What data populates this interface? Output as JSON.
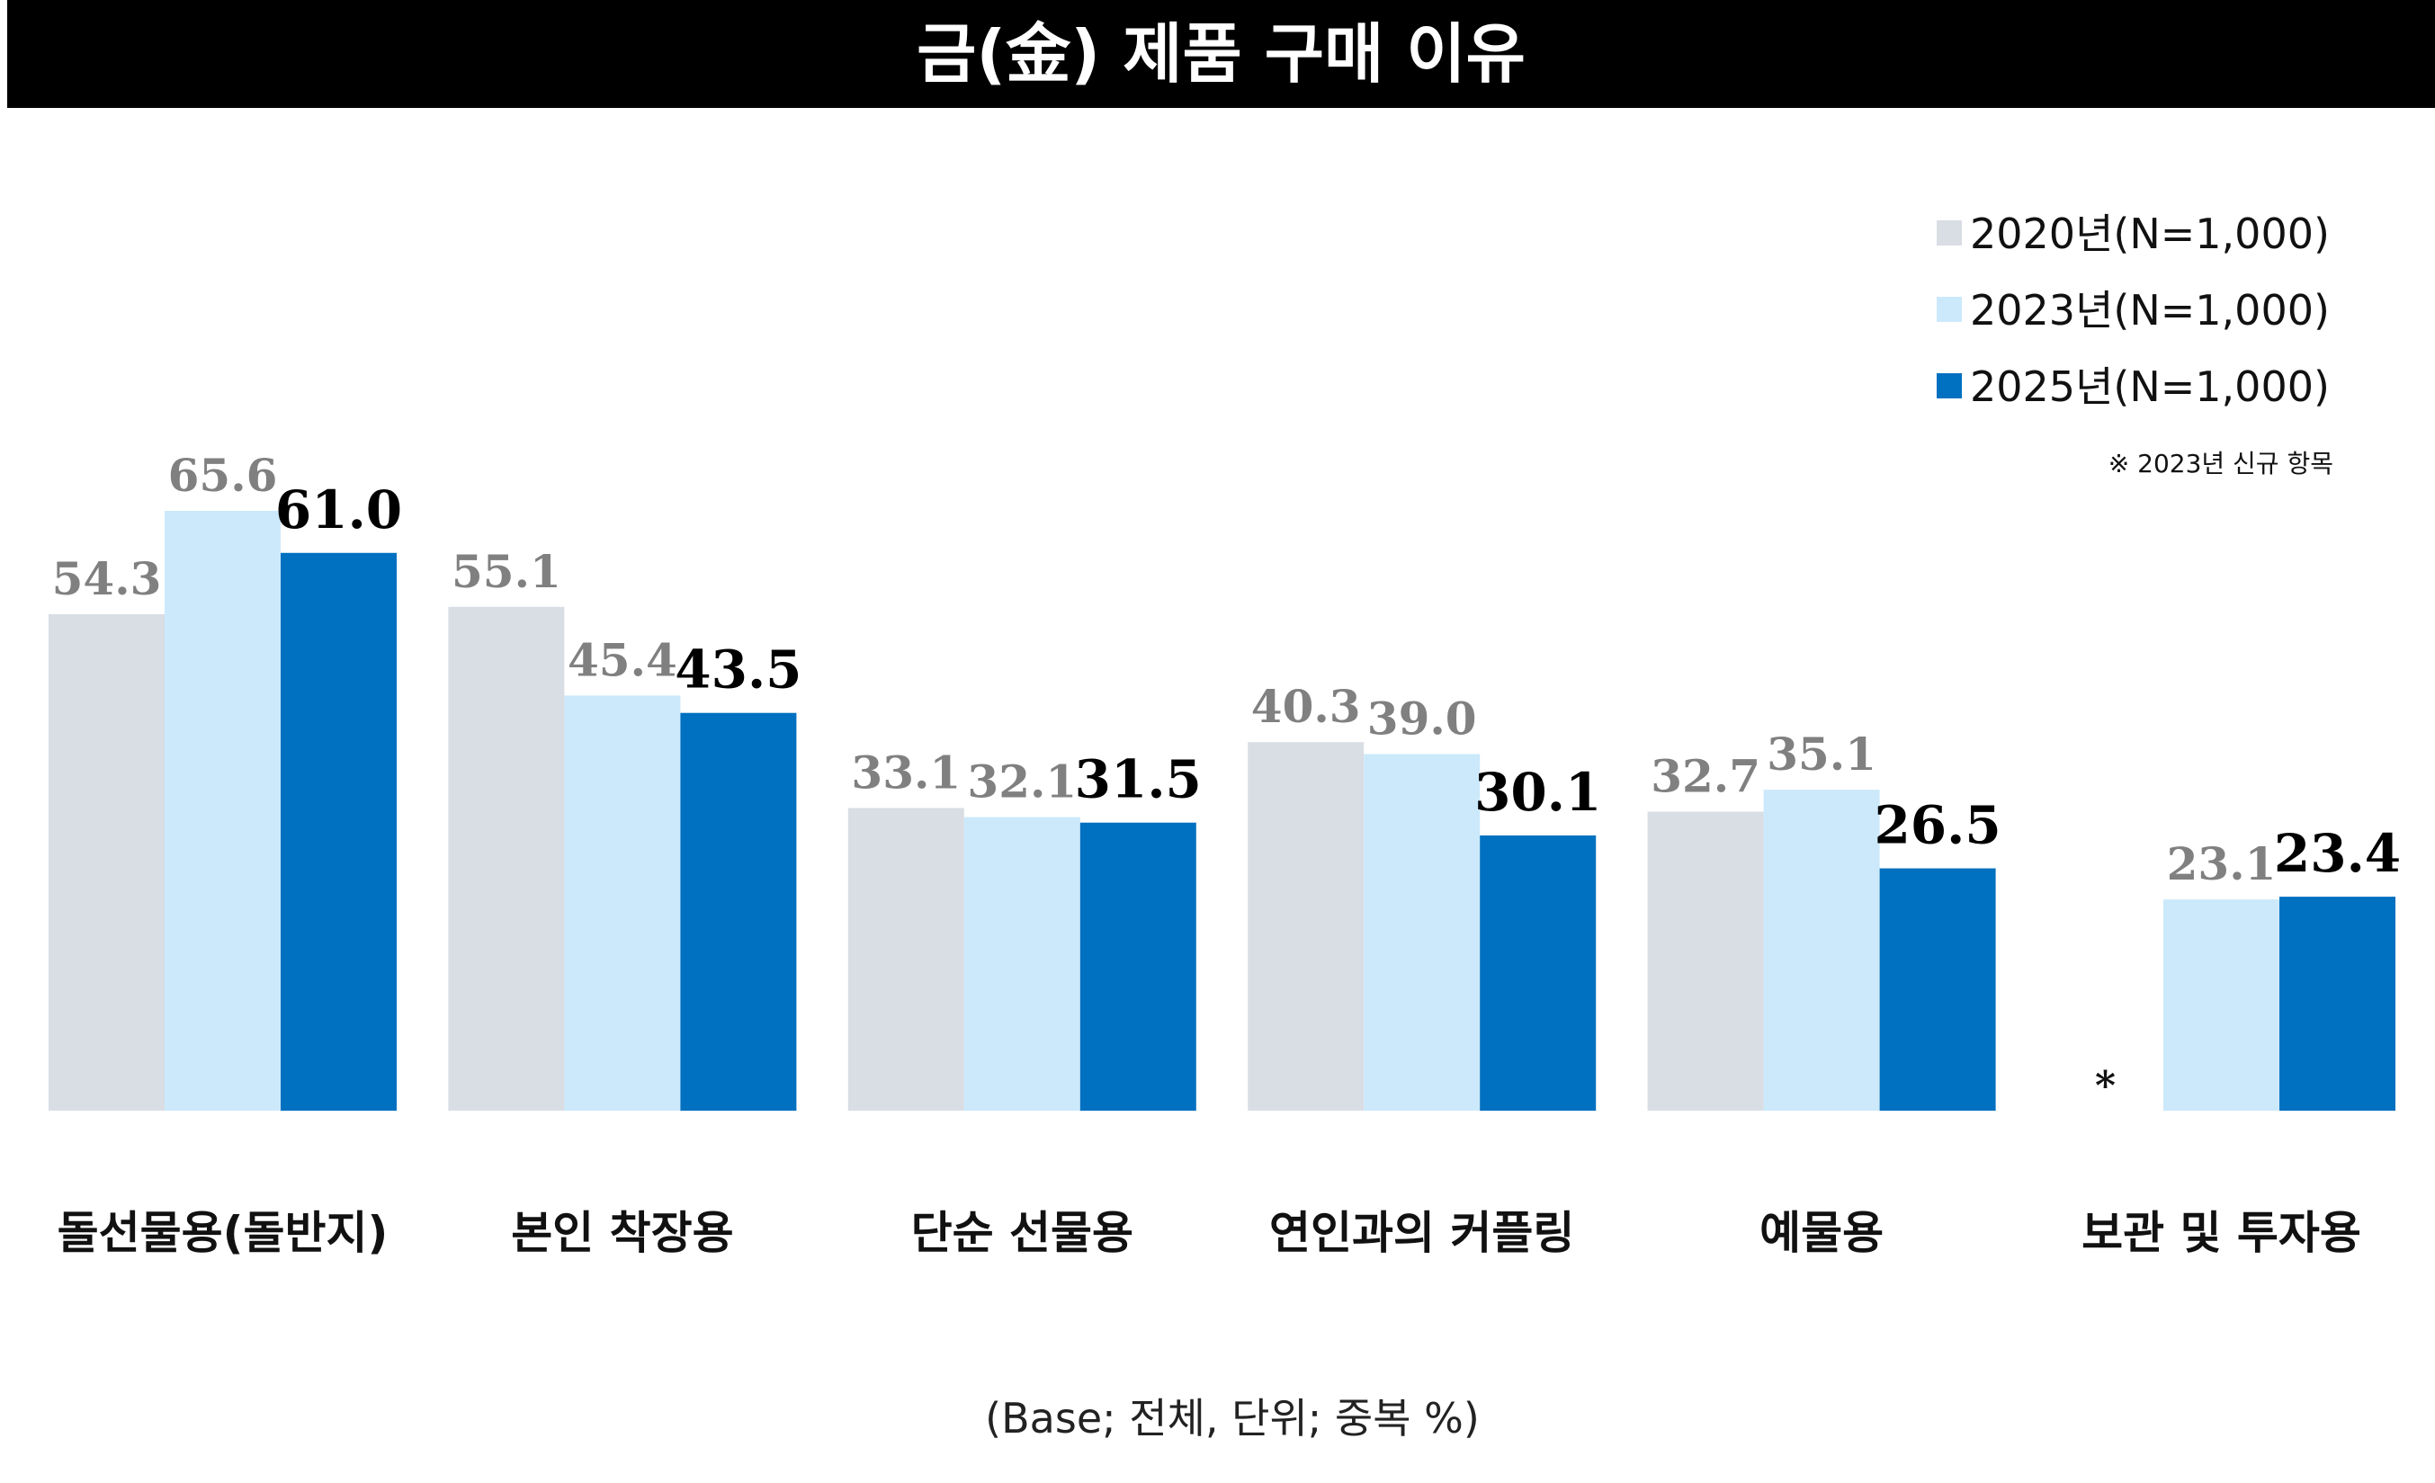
{
  "title": "금(金) 제품 구매 이유",
  "note": "※ 2023년 신규 항목",
  "missing_marker": "*",
  "base_note": "(Base; 전체, 단위; 중복 %)",
  "chart_data": {
    "type": "bar",
    "title": "금(金) 제품 구매 이유",
    "categories": [
      "돌선물용(돌반지)",
      "본인 착장용",
      "단순 선물용",
      "연인과의 커플링",
      "예물용",
      "보관 및 투자용"
    ],
    "series": [
      {
        "name": "2020년(N=1,000)",
        "color": "#d9dde4",
        "label_color": "#808080",
        "values": [
          54.3,
          55.1,
          33.1,
          40.3,
          32.7,
          null
        ],
        "labels": [
          "54.3",
          "55.1",
          "33.1",
          "40.3",
          "32.7",
          null
        ]
      },
      {
        "name": "2023년(N=1,000)",
        "color": "#cce9fb",
        "label_color": "#808080",
        "values": [
          65.6,
          45.4,
          32.1,
          39.0,
          35.1,
          23.1
        ],
        "labels": [
          "65.6",
          "45.4",
          "32.1",
          "39.0",
          "35.1",
          "23.1"
        ]
      },
      {
        "name": "2025년(N=1,000)",
        "color": "#0070c0",
        "label_color": "#000000",
        "values": [
          61.0,
          43.5,
          31.5,
          30.1,
          26.5,
          23.4
        ],
        "labels": [
          "61.0",
          "43.5",
          "31.5",
          "30.1",
          "26.5",
          "23.4"
        ]
      }
    ],
    "ylim": [
      0,
      65.6
    ],
    "grid": false,
    "legend_position": "top-right",
    "unit": "%"
  }
}
